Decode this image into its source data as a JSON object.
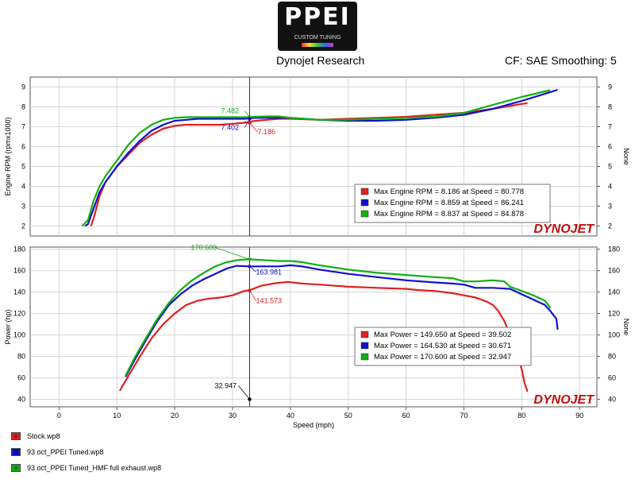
{
  "header": {
    "logo_text": "PPEI",
    "logo_subtext": "CUSTOM TUNING",
    "center_title": "Dynojet Research",
    "right_title": "CF: SAE Smoothing: 5"
  },
  "watermark": "DYNOJET",
  "colors": {
    "stock": "#e02020",
    "tuned": "#1010d0",
    "tuned_hmf": "#10b010"
  },
  "legend": [
    {
      "label": "Stock.wp8",
      "color": "#e02020"
    },
    {
      "label": "93 oct_PPEI Tuned.wp8",
      "color": "#1010d0"
    },
    {
      "label": "93 oct_PPEI Tuned_HMF full exhaust.wp8",
      "color": "#10b010"
    }
  ],
  "chart_data": [
    {
      "type": "line",
      "ylabel": "Engine RPM (rpmx1000)",
      "ylabel_right": "None",
      "xlim": [
        -5,
        93
      ],
      "ylim": [
        1.5,
        9.5
      ],
      "yticks": [
        2,
        3,
        4,
        5,
        6,
        7,
        8,
        9
      ],
      "grid": true,
      "series": [
        {
          "name": "Stock.wp8",
          "color": "#e02020",
          "x": [
            5.5,
            6,
            7,
            8,
            10,
            12,
            14,
            16,
            18,
            20,
            22,
            24,
            26,
            28,
            30,
            32,
            34,
            36,
            38,
            40,
            45,
            50,
            55,
            60,
            65,
            70,
            75,
            80,
            81
          ],
          "y": [
            2.0,
            2.4,
            3.5,
            4.2,
            5.0,
            5.6,
            6.2,
            6.6,
            6.9,
            7.05,
            7.1,
            7.1,
            7.1,
            7.1,
            7.15,
            7.2,
            7.3,
            7.35,
            7.4,
            7.4,
            7.35,
            7.4,
            7.45,
            7.5,
            7.6,
            7.7,
            7.9,
            8.15,
            8.19
          ]
        },
        {
          "name": "93 oct_PPEI Tuned.wp8",
          "color": "#1010d0",
          "x": [
            4.5,
            5,
            6,
            7,
            8,
            10,
            12,
            14,
            16,
            18,
            20,
            22,
            24,
            26,
            28,
            30,
            32,
            34,
            36,
            38,
            40,
            45,
            50,
            55,
            60,
            65,
            70,
            75,
            80,
            85,
            86.2
          ],
          "y": [
            2.0,
            2.1,
            2.9,
            3.7,
            4.2,
            5.0,
            5.7,
            6.3,
            6.8,
            7.1,
            7.3,
            7.35,
            7.4,
            7.4,
            7.4,
            7.4,
            7.4,
            7.45,
            7.45,
            7.45,
            7.45,
            7.35,
            7.3,
            7.3,
            7.35,
            7.45,
            7.6,
            7.9,
            8.3,
            8.75,
            8.86
          ]
        },
        {
          "name": "93 oct_PPEI Tuned_HMF full exhaust.wp8",
          "color": "#10b010",
          "x": [
            4,
            5,
            6,
            7,
            8,
            10,
            12,
            14,
            16,
            18,
            20,
            22,
            24,
            26,
            28,
            30,
            32,
            33,
            34,
            36,
            38,
            40,
            45,
            50,
            55,
            60,
            65,
            70,
            75,
            80,
            84.9
          ],
          "y": [
            2.0,
            2.3,
            3.3,
            4.0,
            4.5,
            5.3,
            6.1,
            6.7,
            7.1,
            7.35,
            7.45,
            7.48,
            7.48,
            7.48,
            7.48,
            7.48,
            7.48,
            7.48,
            7.5,
            7.52,
            7.52,
            7.45,
            7.35,
            7.35,
            7.4,
            7.45,
            7.5,
            7.7,
            8.1,
            8.5,
            8.84
          ]
        }
      ],
      "annotations": [
        {
          "text": "7.482",
          "x": 32.947,
          "y": 7.482,
          "color": "#10b010"
        },
        {
          "text": "7.402",
          "x": 32.947,
          "y": 7.402,
          "color": "#1010d0"
        },
        {
          "text": "7.186",
          "x": 32.947,
          "y": 7.186,
          "color": "#e02020"
        }
      ],
      "info_box": [
        {
          "text": "Max Engine RPM = 8.186 at Speed = 80.778",
          "color": "#e02020"
        },
        {
          "text": "Max Engine RPM = 8.859 at Speed = 86.241",
          "color": "#1010d0"
        },
        {
          "text": "Max Engine RPM = 8.837 at Speed = 84.878",
          "color": "#10b010"
        }
      ]
    },
    {
      "type": "line",
      "ylabel": "Power (hp)",
      "ylabel_right": "None",
      "xlabel": "Speed (mph)",
      "xlim": [
        -5,
        93
      ],
      "ylim": [
        33,
        182
      ],
      "xticks": [
        0,
        10,
        20,
        30,
        40,
        50,
        60,
        70,
        80,
        90
      ],
      "yticks": [
        40,
        60,
        80,
        100,
        120,
        140,
        160,
        180
      ],
      "grid": true,
      "series": [
        {
          "name": "Stock.wp8",
          "color": "#e02020",
          "x": [
            10.5,
            12,
            14,
            16,
            18,
            20,
            22,
            24,
            26,
            28,
            30,
            32,
            33,
            35,
            37,
            39.5,
            42,
            45,
            50,
            55,
            60,
            62,
            65,
            68,
            70,
            72,
            74,
            75,
            76,
            77,
            78,
            79,
            80,
            80.5,
            81
          ],
          "y": [
            48,
            62,
            80,
            97,
            110,
            120,
            128,
            132,
            134,
            135,
            137,
            141,
            142,
            146,
            148,
            149.5,
            148,
            147,
            145,
            144,
            143,
            142,
            141,
            139,
            137,
            135,
            131,
            128,
            122,
            113,
            100,
            86,
            68,
            55,
            47
          ]
        },
        {
          "name": "93 oct_PPEI Tuned.wp8",
          "color": "#1010d0",
          "x": [
            11.5,
            13,
            15,
            17,
            19,
            21,
            23,
            25,
            27,
            29,
            30.7,
            33,
            35,
            38,
            40,
            42,
            45,
            50,
            55,
            60,
            65,
            68,
            70,
            72,
            75,
            78,
            80,
            82,
            84,
            85,
            86,
            86.2
          ],
          "y": [
            61,
            76,
            95,
            113,
            128,
            138,
            146,
            152,
            157,
            162,
            164.5,
            164,
            164,
            164,
            165,
            164,
            161,
            157,
            154,
            151,
            149,
            148,
            147,
            144,
            144,
            143,
            138,
            133,
            128,
            122,
            115,
            105
          ]
        },
        {
          "name": "93 oct_PPEI Tuned_HMF full exhaust.wp8",
          "color": "#10b010",
          "x": [
            11.5,
            13,
            15,
            17,
            19,
            21,
            23,
            25,
            27,
            29,
            31,
            32.9,
            35,
            38,
            40,
            42,
            45,
            50,
            55,
            60,
            65,
            68,
            70,
            72,
            75,
            77,
            78,
            80,
            82,
            84,
            85
          ],
          "y": [
            62,
            78,
            97,
            115,
            130,
            142,
            151,
            158,
            164,
            168,
            170,
            170.6,
            170,
            169,
            169,
            168,
            165,
            161,
            158,
            156,
            154,
            153,
            150,
            150,
            151,
            150,
            145,
            141,
            137,
            132,
            125
          ]
        }
      ],
      "annotations": [
        {
          "text": "170.600",
          "x": 32.947,
          "y": 170.6,
          "color": "#10b010"
        },
        {
          "text": "163.981",
          "x": 32.947,
          "y": 163.981,
          "color": "#1010d0"
        },
        {
          "text": "141.573",
          "x": 32.947,
          "y": 141.573,
          "color": "#e02020"
        },
        {
          "text": "32.947",
          "x": 32.947,
          "y": 40,
          "color": "#000000"
        }
      ],
      "info_box": [
        {
          "text": "Max Power = 149.650 at Speed = 39.502",
          "color": "#e02020"
        },
        {
          "text": "Max Power = 164.530 at Speed = 30.671",
          "color": "#1010d0"
        },
        {
          "text": "Max Power = 170.600 at Speed = 32.947",
          "color": "#10b010"
        }
      ]
    }
  ]
}
